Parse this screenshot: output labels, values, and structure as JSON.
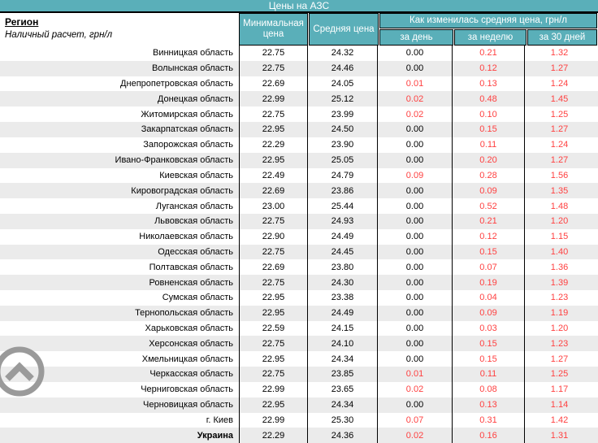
{
  "title": "Цены на АЗС",
  "header": {
    "region_label": "Регион",
    "region_sub": "Наличный расчет, грн/л",
    "col_min": "Минимальная цена",
    "col_avg": "Средняя цена",
    "change_group": "Как изменилась средняя цена, грн/л",
    "col_day": "за день",
    "col_week": "за неделю",
    "col_month": "за 30 дней"
  },
  "rows": [
    {
      "region": "Винницкая область",
      "min": "22.75",
      "avg": "24.32",
      "day": "0.00",
      "week": "0.21",
      "month": "1.32"
    },
    {
      "region": "Волынская область",
      "min": "22.75",
      "avg": "24.46",
      "day": "0.00",
      "week": "0.12",
      "month": "1.27"
    },
    {
      "region": "Днепропетровская область",
      "min": "22.69",
      "avg": "24.05",
      "day": "0.01",
      "week": "0.13",
      "month": "1.24"
    },
    {
      "region": "Донецкая область",
      "min": "22.99",
      "avg": "25.12",
      "day": "0.02",
      "week": "0.48",
      "month": "1.45"
    },
    {
      "region": "Житомирская область",
      "min": "22.75",
      "avg": "23.99",
      "day": "0.02",
      "week": "0.10",
      "month": "1.25"
    },
    {
      "region": "Закарпатская область",
      "min": "22.95",
      "avg": "24.50",
      "day": "0.00",
      "week": "0.15",
      "month": "1.27"
    },
    {
      "region": "Запорожская область",
      "min": "22.29",
      "avg": "23.90",
      "day": "0.00",
      "week": "0.11",
      "month": "1.24"
    },
    {
      "region": "Ивано-Франковская область",
      "min": "22.95",
      "avg": "25.05",
      "day": "0.00",
      "week": "0.20",
      "month": "1.27"
    },
    {
      "region": "Киевская область",
      "min": "22.49",
      "avg": "24.79",
      "day": "0.09",
      "week": "0.28",
      "month": "1.56"
    },
    {
      "region": "Кировоградская область",
      "min": "22.69",
      "avg": "23.86",
      "day": "0.00",
      "week": "0.09",
      "month": "1.35"
    },
    {
      "region": "Луганская область",
      "min": "23.00",
      "avg": "25.44",
      "day": "0.00",
      "week": "0.52",
      "month": "1.48"
    },
    {
      "region": "Львовская область",
      "min": "22.75",
      "avg": "24.93",
      "day": "0.00",
      "week": "0.21",
      "month": "1.20"
    },
    {
      "region": "Николаевская область",
      "min": "22.90",
      "avg": "24.49",
      "day": "0.00",
      "week": "0.12",
      "month": "1.15"
    },
    {
      "region": "Одесская область",
      "min": "22.75",
      "avg": "24.45",
      "day": "0.00",
      "week": "0.15",
      "month": "1.40"
    },
    {
      "region": "Полтавская область",
      "min": "22.69",
      "avg": "23.80",
      "day": "0.00",
      "week": "0.07",
      "month": "1.36"
    },
    {
      "region": "Ровненская область",
      "min": "22.75",
      "avg": "24.30",
      "day": "0.00",
      "week": "0.19",
      "month": "1.39"
    },
    {
      "region": "Сумская область",
      "min": "22.95",
      "avg": "23.38",
      "day": "0.00",
      "week": "0.04",
      "month": "1.23"
    },
    {
      "region": "Тернопольская область",
      "min": "22.95",
      "avg": "24.49",
      "day": "0.00",
      "week": "0.09",
      "month": "1.19"
    },
    {
      "region": "Харьковская область",
      "min": "22.59",
      "avg": "24.15",
      "day": "0.00",
      "week": "0.03",
      "month": "1.20"
    },
    {
      "region": "Херсонская область",
      "min": "22.75",
      "avg": "24.10",
      "day": "0.00",
      "week": "0.15",
      "month": "1.23"
    },
    {
      "region": "Хмельницкая область",
      "min": "22.95",
      "avg": "24.34",
      "day": "0.00",
      "week": "0.15",
      "month": "1.27"
    },
    {
      "region": "Черкасская область",
      "min": "22.75",
      "avg": "23.85",
      "day": "0.01",
      "week": "0.11",
      "month": "1.25"
    },
    {
      "region": "Черниговская область",
      "min": "22.99",
      "avg": "23.65",
      "day": "0.02",
      "week": "0.08",
      "month": "1.17"
    },
    {
      "region": "Черновицкая область",
      "min": "22.95",
      "avg": "24.34",
      "day": "0.00",
      "week": "0.13",
      "month": "1.14"
    },
    {
      "region": "г. Киев",
      "min": "22.99",
      "avg": "25.30",
      "day": "0.07",
      "week": "0.31",
      "month": "1.42"
    },
    {
      "region": "Украина",
      "min": "22.29",
      "avg": "24.36",
      "day": "0.02",
      "week": "0.16",
      "month": "1.31",
      "bold": true
    }
  ],
  "icon": {
    "scroll_top": "chevron-up-circle"
  },
  "colors": {
    "teal": "#5AAFB9",
    "stripe": "#EBEBEB",
    "red": "#FF4040",
    "black": "#000000",
    "icon_gray": "#9A9A9A"
  }
}
